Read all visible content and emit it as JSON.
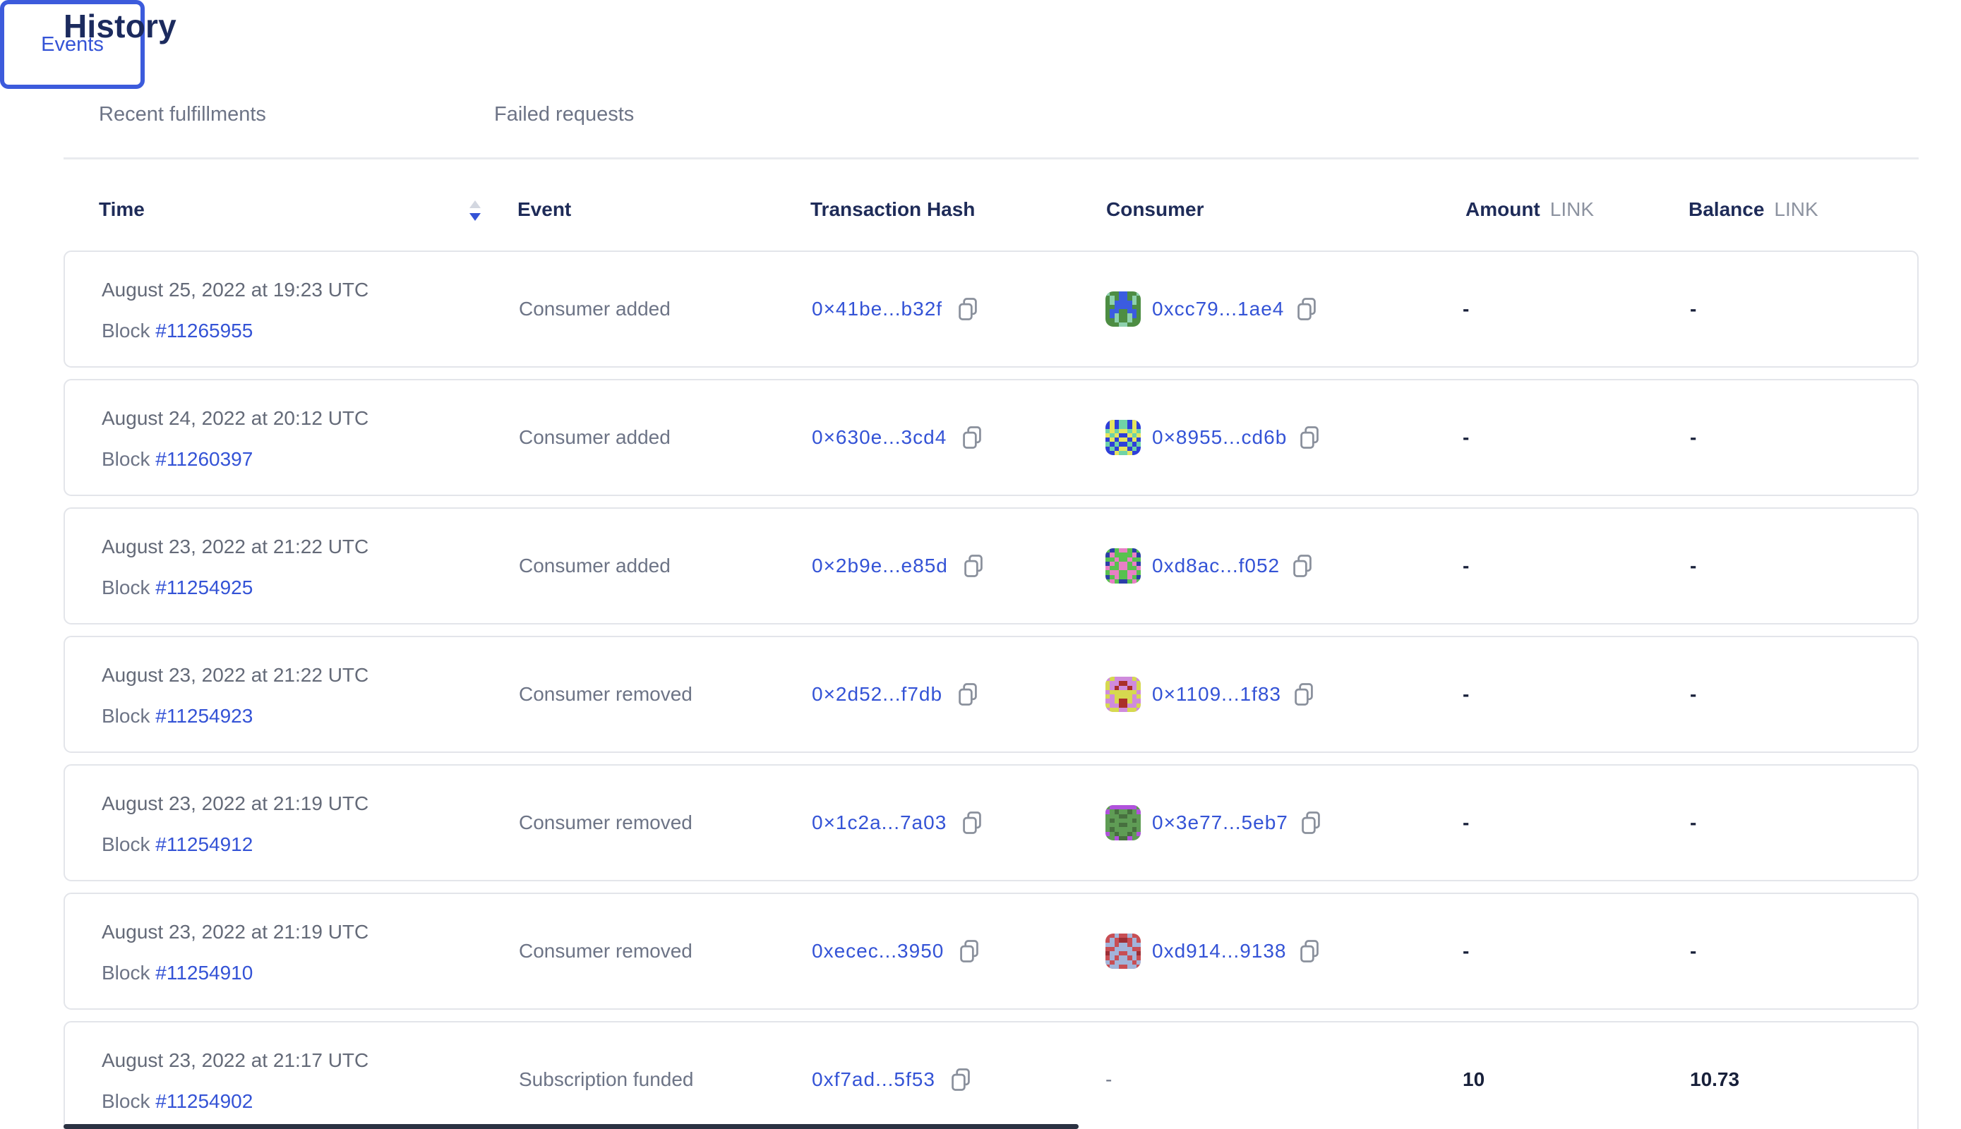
{
  "page": {
    "title": "History"
  },
  "tabs": [
    {
      "label": "Recent fulfillments",
      "active": false
    },
    {
      "label": "Events",
      "active": true
    },
    {
      "label": "Failed requests",
      "active": false
    }
  ],
  "table": {
    "columns": {
      "time": "Time",
      "event": "Event",
      "transaction_hash": "Transaction Hash",
      "consumer": "Consumer",
      "amount": "Amount",
      "balance": "Balance",
      "unit": "LINK"
    },
    "block_label": "Block",
    "sort": {
      "column": "time",
      "direction": "descending"
    },
    "rows": [
      {
        "date": "August 25, 2022 at 19:23 UTC",
        "block_number": "#11265955",
        "event": "Consumer added",
        "tx_hash": "0×41be...b32f",
        "consumer_address": "0xcc79...1ae4",
        "amount": "-",
        "balance": "-",
        "identicon": {
          "bg": "#4d8d43",
          "c1": "#3b5ce0",
          "c2": "#8ed1ae",
          "grid": [
            "20011002",
            "02011020",
            "02111120",
            "00111100",
            "01100110",
            "01200210",
            "00200200",
            "00022000"
          ]
        }
      },
      {
        "date": "August 24, 2022 at 20:12 UTC",
        "block_number": "#11260397",
        "event": "Consumer added",
        "tx_hash": "0×630e...3cd4",
        "consumer_address": "0×8955...cd6b",
        "amount": "-",
        "balance": "-",
        "identicon": {
          "bg": "#2e3fd9",
          "c1": "#e6e55e",
          "c2": "#6fd3a6",
          "grid": [
            "01022010",
            "01022010",
            "21211212",
            "12100121",
            "01011010",
            "20200202",
            "02011020",
            "00122100"
          ]
        }
      },
      {
        "date": "August 23, 2022 at 21:22 UTC",
        "block_number": "#11254925",
        "event": "Consumer added",
        "tx_hash": "0×2b9e...e85d",
        "consumer_address": "0xd8ac...f052",
        "amount": "-",
        "balance": "-",
        "identicon": {
          "bg": "#58c14f",
          "c1": "#e97fc5",
          "c2": "#2b3fa8",
          "grid": [
            "02011020",
            "21000012",
            "00100100",
            "21011012",
            "10011001",
            "01100110",
            "20100102",
            "01022010"
          ]
        }
      },
      {
        "date": "August 23, 2022 at 21:22 UTC",
        "block_number": "#11254923",
        "event": "Consumer removed",
        "tx_hash": "0×2d52...f7db",
        "consumer_address": "0×1109...1f83",
        "amount": "-",
        "balance": "-",
        "identicon": {
          "bg": "#cf8bdc",
          "c1": "#d6d94f",
          "c2": "#aa2f28",
          "grid": [
            "01000010",
            "10022001",
            "10200201",
            "01111110",
            "10111101",
            "00122100",
            "10022001",
            "01100110"
          ]
        }
      },
      {
        "date": "August 23, 2022 at 21:19 UTC",
        "block_number": "#11254912",
        "event": "Consumer removed",
        "tx_hash": "0×1c2a...7a03",
        "consumer_address": "0×3e77...5eb7",
        "amount": "-",
        "balance": "-",
        "identicon": {
          "bg": "#5f9c55",
          "c1": "#47703f",
          "c2": "#b052dc",
          "grid": [
            "02222220",
            "20100102",
            "00011000",
            "01000010",
            "00011000",
            "01000010",
            "20100102",
            "00211200"
          ]
        }
      },
      {
        "date": "August 23, 2022 at 21:19 UTC",
        "block_number": "#11254910",
        "event": "Consumer removed",
        "tx_hash": "0xecec...3950",
        "consumer_address": "0xd914...9138",
        "amount": "-",
        "balance": "-",
        "identicon": {
          "bg": "#c84e54",
          "c1": "#a2b4da",
          "c2": "#9c2f36",
          "grid": [
            "00100100",
            "01022010",
            "11011011",
            "00111100",
            "21100112",
            "01011010",
            "10111101",
            "01100110"
          ]
        }
      },
      {
        "date": "August 23, 2022 at 21:17 UTC",
        "block_number": "#11254902",
        "event": "Subscription funded",
        "tx_hash": "0xf7ad...5f53",
        "consumer_address": "-",
        "amount": "10",
        "balance": "10.73",
        "identicon": null
      }
    ]
  },
  "colors": {
    "accent_blue": "#3453d6",
    "heading_navy": "#1c2b5e",
    "text_gray": "#6d7486",
    "unit_gray": "#8d93a0",
    "card_border": "#e3e5ea",
    "value_dark": "#18203a"
  }
}
